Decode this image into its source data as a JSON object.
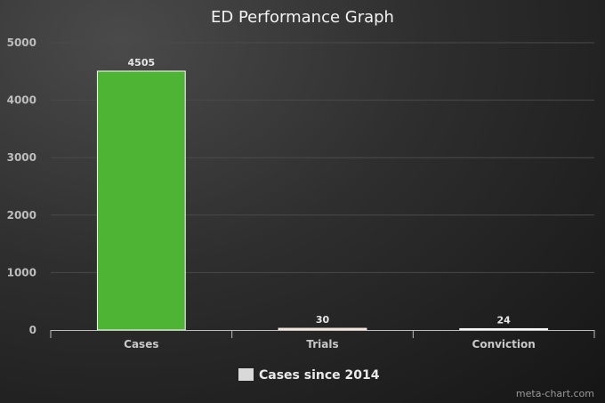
{
  "chart_data": {
    "type": "bar",
    "title": "ED Performance Graph",
    "categories": [
      "Cases",
      "Trials",
      "Conviction"
    ],
    "series": [
      {
        "name": "Cases since 2014",
        "values": [
          4505,
          30,
          24
        ],
        "colors": [
          "#4db533",
          "#f0c8a8",
          "#e8e8e8"
        ]
      }
    ],
    "ylim": [
      0,
      5000
    ],
    "yticks": [
      0,
      1000,
      2000,
      3000,
      4000,
      5000
    ],
    "grid": true,
    "legend": "bottom-center"
  },
  "legend_swatch_color": "#d9d9d9",
  "credit": "meta-chart.com"
}
